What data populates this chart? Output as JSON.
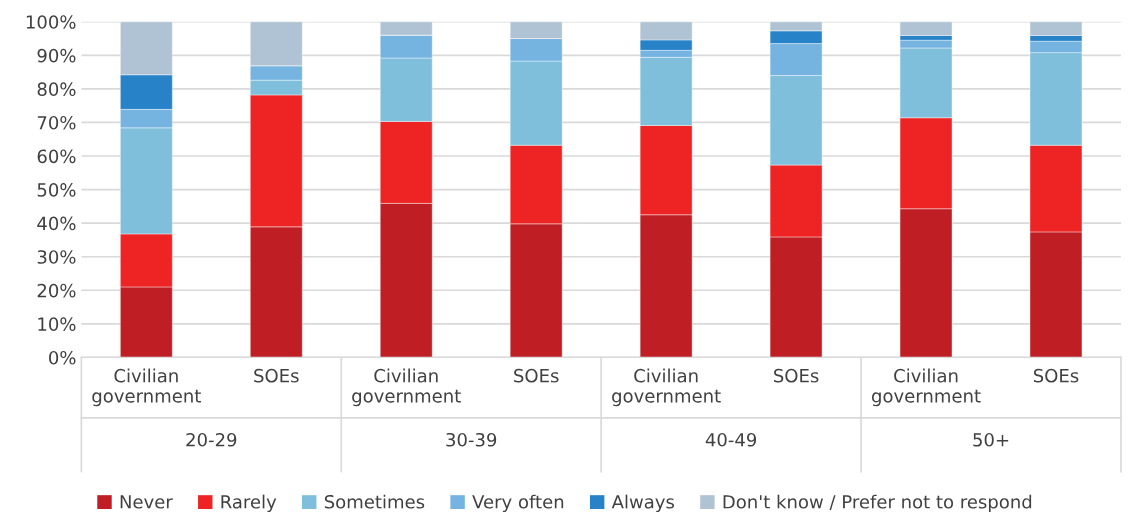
{
  "chart_data": {
    "type": "bar",
    "stacked": true,
    "categories": [
      "Civilian\ngovernment",
      "SOEs",
      "Civilian\ngovernment",
      "SOEs",
      "Civilian\ngovernment",
      "SOEs",
      "Civilian\ngovernment",
      "SOEs"
    ],
    "annotations": [
      "20-29",
      "30-39",
      "40-49",
      "50+"
    ],
    "series": [
      {
        "name": "Never",
        "color": "#be1e24",
        "values": [
          21.0,
          38.9,
          45.9,
          39.8,
          42.5,
          35.9,
          44.3,
          37.4
        ]
      },
      {
        "name": "Rarely",
        "color": "#ee2324",
        "values": [
          15.8,
          39.3,
          24.4,
          23.4,
          26.6,
          21.4,
          27.1,
          25.8
        ]
      },
      {
        "name": "Sometimes",
        "color": "#7fbfdb",
        "values": [
          31.6,
          4.4,
          18.9,
          25.1,
          20.3,
          26.7,
          20.8,
          27.6
        ]
      },
      {
        "name": "Very often",
        "color": "#75b3e1",
        "values": [
          5.5,
          4.3,
          6.8,
          6.7,
          2.1,
          9.5,
          2.3,
          3.4
        ]
      },
      {
        "name": "Always",
        "color": "#2782c8",
        "values": [
          10.3,
          0,
          0,
          0,
          3.1,
          3.8,
          1.4,
          1.7
        ]
      },
      {
        "name": "Don't know / Prefer not to respond",
        "color": "#b0c3d4",
        "values": [
          15.8,
          13.1,
          4.0,
          5.0,
          5.4,
          2.7,
          4.1,
          4.1
        ]
      }
    ],
    "ylim": [
      0,
      100
    ],
    "yticks": [
      {
        "value": 0,
        "label": "0%"
      },
      {
        "value": 10,
        "label": "10%"
      },
      {
        "value": 20,
        "label": "20%"
      },
      {
        "value": 30,
        "label": "30%"
      },
      {
        "value": 40,
        "label": "40%"
      },
      {
        "value": 50,
        "label": "50%"
      },
      {
        "value": 60,
        "label": "60%"
      },
      {
        "value": 70,
        "label": "70%"
      },
      {
        "value": 80,
        "label": "80%"
      },
      {
        "value": 90,
        "label": "90%"
      },
      {
        "value": 100,
        "label": "100%"
      }
    ],
    "grid": "y",
    "legend": "bottom"
  }
}
